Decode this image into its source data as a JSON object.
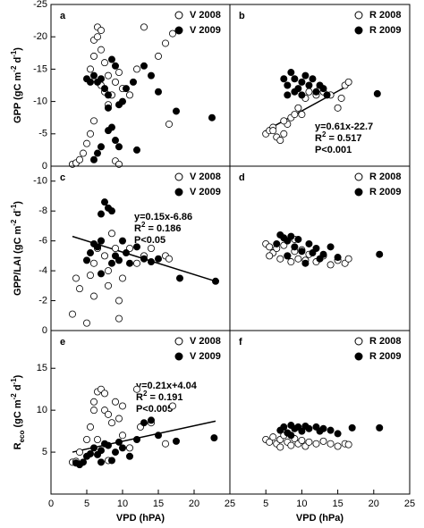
{
  "chart_data": [
    {
      "type": "scatter",
      "panel": "a",
      "ylim": [
        0,
        -25
      ],
      "yticks": [
        0,
        -5,
        -10,
        -15,
        -20,
        -25
      ],
      "ylabel": [
        {
          "t": "GPP (gC m"
        },
        {
          "t": "-2",
          "sup": true
        },
        {
          "t": " d"
        },
        {
          "t": "-1",
          "sup": true
        },
        {
          "t": ")"
        }
      ],
      "series": [
        {
          "name": "V 2008",
          "filled": false,
          "x": [
            3,
            3.5,
            4,
            4.5,
            5,
            5.5,
            6,
            5.5,
            6,
            6,
            6.5,
            6.5,
            7,
            7,
            7.5,
            7,
            8,
            8.5,
            9,
            9.5,
            9,
            9.5,
            10,
            11,
            12,
            13,
            15,
            16,
            17,
            16.5,
            8,
            7.5
          ],
          "values": [
            -0.3,
            -0.5,
            -1,
            -2,
            -3.5,
            -5,
            -7,
            -15,
            -17,
            -19.5,
            -20,
            -21.5,
            -21,
            -18,
            -16,
            -12.5,
            -14,
            -11,
            -13,
            -14.5,
            -0.8,
            -0.3,
            -12,
            -11,
            -15,
            -21.5,
            -17,
            -19,
            -20.5,
            -6.5,
            -9.5,
            -11.5
          ]
        },
        {
          "name": "V 2009",
          "filled": true,
          "x": [
            5,
            5.5,
            6,
            6.5,
            7,
            7.5,
            8,
            8,
            8.5,
            9,
            9.5,
            10,
            10.5,
            7,
            6.5,
            6,
            8.5,
            9,
            11.5,
            12,
            13,
            14,
            15,
            17.5,
            22.5,
            8,
            9.5
          ],
          "values": [
            -13.5,
            -13,
            -14,
            -13,
            -13.5,
            -12,
            -11,
            -9,
            -6,
            -4,
            -3,
            -10,
            -12,
            -3,
            -2,
            -1,
            -16.5,
            -15.5,
            -13,
            -2.5,
            -15.5,
            -14,
            -11.5,
            -8.5,
            -7.5,
            -5.5,
            -9.5
          ]
        }
      ]
    },
    {
      "type": "scatter",
      "panel": "b",
      "ylim": [
        0,
        -25
      ],
      "series": [
        {
          "name": "R 2008",
          "filled": false,
          "x": [
            5,
            5.5,
            6,
            6.5,
            7,
            7.5,
            8,
            8.5,
            9,
            9.5,
            10,
            10.5,
            11,
            12,
            12.5,
            13,
            14,
            15,
            15.5,
            16,
            16.5,
            7.5,
            6
          ],
          "values": [
            -5,
            -5.5,
            -6,
            -4.5,
            -4,
            -5,
            -6.5,
            -7.5,
            -8,
            -9,
            -8,
            -10.5,
            -11.5,
            -11,
            -12,
            -11.5,
            -11,
            -9,
            -10.5,
            -12.5,
            -13,
            -7,
            -5.5
          ]
        },
        {
          "name": "R 2009",
          "filled": true,
          "x": [
            7.5,
            8,
            8.5,
            9,
            9.5,
            10,
            10.5,
            11,
            11.5,
            12,
            12.5,
            13,
            13.5,
            8,
            9,
            20.5,
            10
          ],
          "values": [
            -13.5,
            -12.5,
            -14.5,
            -13.5,
            -12,
            -13,
            -14,
            -12.5,
            -13.5,
            -11.5,
            -12.5,
            -12,
            -11,
            -11,
            -11.5,
            -11.2,
            -11
          ]
        }
      ],
      "fit": {
        "x": [
          5,
          16.5
        ],
        "y": [
          -5.5,
          -12.5
        ]
      },
      "annotation": [
        [
          {
            "t": "y=0.61x-22.7"
          }
        ],
        [
          {
            "t": "R"
          },
          {
            "t": "2",
            "sup": true
          },
          {
            "t": " = 0.517"
          }
        ],
        [
          {
            "t": "P<0.001"
          }
        ]
      ]
    },
    {
      "type": "scatter",
      "panel": "c",
      "ylim": [
        0,
        -11
      ],
      "yticks": [
        0,
        -2,
        -4,
        -6,
        -8,
        -10
      ],
      "ylabel": [
        {
          "t": "GPP/LAI (gC m"
        },
        {
          "t": "-2",
          "sup": true
        },
        {
          "t": " d"
        },
        {
          "t": "-1",
          "sup": true
        },
        {
          "t": ")"
        }
      ],
      "series": [
        {
          "name": "V 2008",
          "filled": false,
          "x": [
            3,
            3.5,
            4,
            5,
            5.5,
            6,
            6.5,
            7,
            7.5,
            8,
            8.5,
            9,
            9.5,
            9.5,
            10,
            11,
            12,
            13,
            14,
            16,
            16.5,
            8,
            6
          ],
          "values": [
            -1.1,
            -3.5,
            -2.8,
            -0.5,
            -3.7,
            -4.5,
            -5.5,
            -6,
            -5,
            -4,
            -6.5,
            -5.5,
            -2,
            -0.8,
            -3.5,
            -5.5,
            -4.5,
            -5,
            -5.5,
            -5,
            -4.8,
            -3,
            -2.3
          ]
        },
        {
          "name": "V 2009",
          "filled": true,
          "x": [
            5,
            5.5,
            6,
            6.5,
            7,
            7,
            7.5,
            8,
            8.5,
            8.5,
            9,
            9.5,
            10,
            10.5,
            11,
            12,
            13,
            14,
            15,
            18,
            23,
            7
          ],
          "values": [
            -4.7,
            -5.2,
            -5.8,
            -5.6,
            -6,
            -7.8,
            -8.6,
            -8.2,
            -8,
            -4.5,
            -5,
            -4.7,
            -6,
            -5.2,
            -4.5,
            -5.6,
            -4.8,
            -4.6,
            -4.8,
            -3.5,
            -3.3,
            -3.8
          ]
        }
      ],
      "fit": {
        "x": [
          3,
          23
        ],
        "y": [
          -6.3,
          -3.3
        ]
      },
      "annotation": [
        [
          {
            "t": "y=0.15x-6.86"
          }
        ],
        [
          {
            "t": "R"
          },
          {
            "t": "2",
            "sup": true
          },
          {
            "t": " = 0.186"
          }
        ],
        [
          {
            "t": "P<0.05"
          }
        ]
      ]
    },
    {
      "type": "scatter",
      "panel": "d",
      "ylim": [
        0,
        -11
      ],
      "series": [
        {
          "name": "R 2008",
          "filled": false,
          "x": [
            5,
            5.5,
            6,
            6.5,
            7,
            7.5,
            8,
            8.5,
            9,
            9.5,
            10,
            10.5,
            11,
            12,
            13,
            14,
            15,
            16,
            16.5,
            5.5,
            9
          ],
          "values": [
            -5.8,
            -5.6,
            -5.2,
            -5.5,
            -4.8,
            -5.7,
            -5,
            -4.6,
            -5.3,
            -4.8,
            -5.4,
            -4.7,
            -5.1,
            -4.6,
            -5,
            -4.4,
            -4.7,
            -4.5,
            -4.8,
            -5,
            -6.1
          ]
        },
        {
          "name": "R 2009",
          "filled": true,
          "x": [
            6.5,
            7,
            7.5,
            8,
            8.5,
            9,
            9.5,
            10,
            10.5,
            11,
            11.5,
            12,
            12.5,
            13,
            14,
            15,
            20.8,
            8
          ],
          "values": [
            -5.8,
            -6.4,
            -6.2,
            -6,
            -6.3,
            -5.6,
            -6.1,
            -5.3,
            -4.5,
            -5.8,
            -5.2,
            -5.5,
            -4.8,
            -5.1,
            -5.6,
            -4.9,
            -5.1,
            -5
          ]
        }
      ]
    },
    {
      "type": "scatter",
      "panel": "e",
      "ylim": [
        0,
        19.5
      ],
      "yticks": [
        5,
        10,
        15
      ],
      "xlim": [
        0,
        25
      ],
      "xticks": [
        0,
        5,
        10,
        15,
        20,
        25
      ],
      "xlabel": "VPD (hPA)",
      "ylabel": [
        {
          "t": "R"
        },
        {
          "t": "eco",
          "sub": true
        },
        {
          "t": " (gC m"
        },
        {
          "t": "-2",
          "sup": true
        },
        {
          "t": " d"
        },
        {
          "t": "-1",
          "sup": true
        },
        {
          "t": ")"
        }
      ],
      "series": [
        {
          "name": "V 2008",
          "filled": false,
          "x": [
            3,
            3.5,
            4,
            5,
            5.5,
            6,
            6,
            6.5,
            7,
            7.5,
            7.5,
            8,
            8.5,
            9,
            9.5,
            10,
            10,
            11,
            12,
            12.5,
            14,
            16,
            17,
            6.5,
            8
          ],
          "values": [
            3.8,
            3.9,
            5,
            6.5,
            8,
            10,
            11,
            12.2,
            12.5,
            12,
            10,
            9.5,
            8.5,
            11,
            9,
            10.5,
            7,
            5.5,
            12.5,
            8,
            8.5,
            6,
            10.5,
            6.5,
            4
          ]
        },
        {
          "name": "V 2009",
          "filled": true,
          "x": [
            3.5,
            4,
            4.5,
            5,
            5.5,
            6,
            6.5,
            7,
            7.5,
            8,
            8.5,
            9,
            9.5,
            10,
            11,
            12,
            13,
            14,
            15,
            17.5,
            22.8,
            7
          ],
          "values": [
            3.7,
            3.5,
            3.8,
            4.5,
            4.8,
            5.5,
            4.7,
            5.2,
            6,
            5.8,
            4,
            5,
            6.2,
            5.5,
            4.5,
            6.5,
            8.5,
            8.8,
            7,
            6.3,
            6.7,
            3.8
          ]
        }
      ],
      "fit": {
        "x": [
          3,
          23
        ],
        "y": [
          5,
          8.7
        ]
      },
      "annotation": [
        [
          {
            "t": "y=0.21x+4.04"
          }
        ],
        [
          {
            "t": "R"
          },
          {
            "t": "2",
            "sup": true
          },
          {
            "t": " = 0.191"
          }
        ],
        [
          {
            "t": "P<0.005"
          }
        ]
      ]
    },
    {
      "type": "scatter",
      "panel": "f",
      "ylim": [
        0,
        19.5
      ],
      "xlim": [
        0,
        25
      ],
      "xticks": [
        5,
        10,
        15,
        20,
        25
      ],
      "xlabel": "VPD (hPa)",
      "series": [
        {
          "name": "R 2008",
          "filled": false,
          "x": [
            5,
            5.5,
            6,
            6.5,
            7,
            7.5,
            8,
            8.5,
            9,
            9.5,
            10,
            10.5,
            11,
            12,
            13,
            14,
            15,
            16,
            16.5,
            7
          ],
          "values": [
            6.5,
            6.2,
            6.8,
            6,
            6.5,
            7,
            6.2,
            5.8,
            6.6,
            6,
            6.4,
            5.7,
            6.2,
            6,
            6.3,
            6,
            5.7,
            6,
            5.9,
            5.6
          ]
        },
        {
          "name": "R 2009",
          "filled": true,
          "x": [
            7,
            7.5,
            8,
            8.5,
            9,
            9.5,
            10,
            10.5,
            11,
            12,
            12.5,
            13,
            14,
            15,
            17,
            20.8,
            8.5
          ],
          "values": [
            7.6,
            8,
            7.3,
            8.2,
            7.8,
            8,
            7.5,
            8.1,
            7.8,
            8,
            7.5,
            7.8,
            7.6,
            7.2,
            7.9,
            7.9,
            7
          ]
        }
      ]
    }
  ]
}
